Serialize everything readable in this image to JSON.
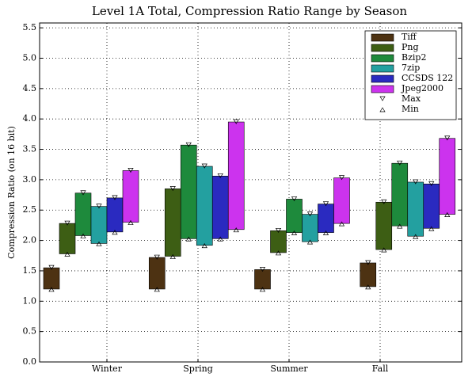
{
  "chart_data": {
    "type": "range_bar",
    "title": "Level 1A Total, Compression Ratio Range by Season",
    "y_label": "Compression Ratio (on 16 bit)",
    "categories": [
      "Winter",
      "Spring",
      "Summer",
      "Fall"
    ],
    "series": [
      {
        "name": "Tiff",
        "color": "#4d3212",
        "min": [
          1.2,
          1.2,
          1.2,
          1.24
        ],
        "max": [
          1.55,
          1.72,
          1.52,
          1.63
        ]
      },
      {
        "name": "Png",
        "color": "#3d5e14",
        "min": [
          1.78,
          1.74,
          1.8,
          1.85
        ],
        "max": [
          2.28,
          2.85,
          2.16,
          2.63
        ]
      },
      {
        "name": "Bzip2",
        "color": "#1e8a3c",
        "min": [
          2.08,
          2.03,
          2.13,
          2.24
        ],
        "max": [
          2.78,
          3.57,
          2.68,
          3.27
        ]
      },
      {
        "name": "7zip",
        "color": "#23a0a0",
        "min": [
          1.95,
          1.92,
          1.98,
          2.07
        ],
        "max": [
          2.56,
          3.22,
          2.43,
          2.96
        ]
      },
      {
        "name": "CCSDS 122",
        "color": "#2a2ac0",
        "min": [
          2.14,
          2.03,
          2.13,
          2.2
        ],
        "max": [
          2.7,
          3.06,
          2.6,
          2.93
        ]
      },
      {
        "name": "Jpeg2000",
        "color": "#cc33ee",
        "min": [
          2.3,
          2.18,
          2.28,
          2.43
        ],
        "max": [
          3.15,
          3.95,
          3.03,
          3.68
        ]
      }
    ],
    "marker_legend": {
      "max": "Max",
      "min": "Min"
    },
    "ylim": [
      0,
      5.58
    ],
    "yticks": [
      {
        "value": 0,
        "label": "0.0"
      },
      {
        "value": 0.5,
        "label": "0.5"
      },
      {
        "value": 1,
        "label": "1.0"
      },
      {
        "value": 1.5,
        "label": "1.5"
      },
      {
        "value": 2,
        "label": "2.0"
      },
      {
        "value": 2.5,
        "label": "2.5"
      },
      {
        "value": 3,
        "label": "3.0"
      },
      {
        "value": 3.5,
        "label": "3.5"
      },
      {
        "value": 4,
        "label": "4.0"
      },
      {
        "value": 4.5,
        "label": "4.5"
      },
      {
        "value": 5,
        "label": "5.0"
      },
      {
        "value": 5.5,
        "label": "5.5"
      }
    ],
    "grid": true,
    "legend_position": "upper right"
  }
}
